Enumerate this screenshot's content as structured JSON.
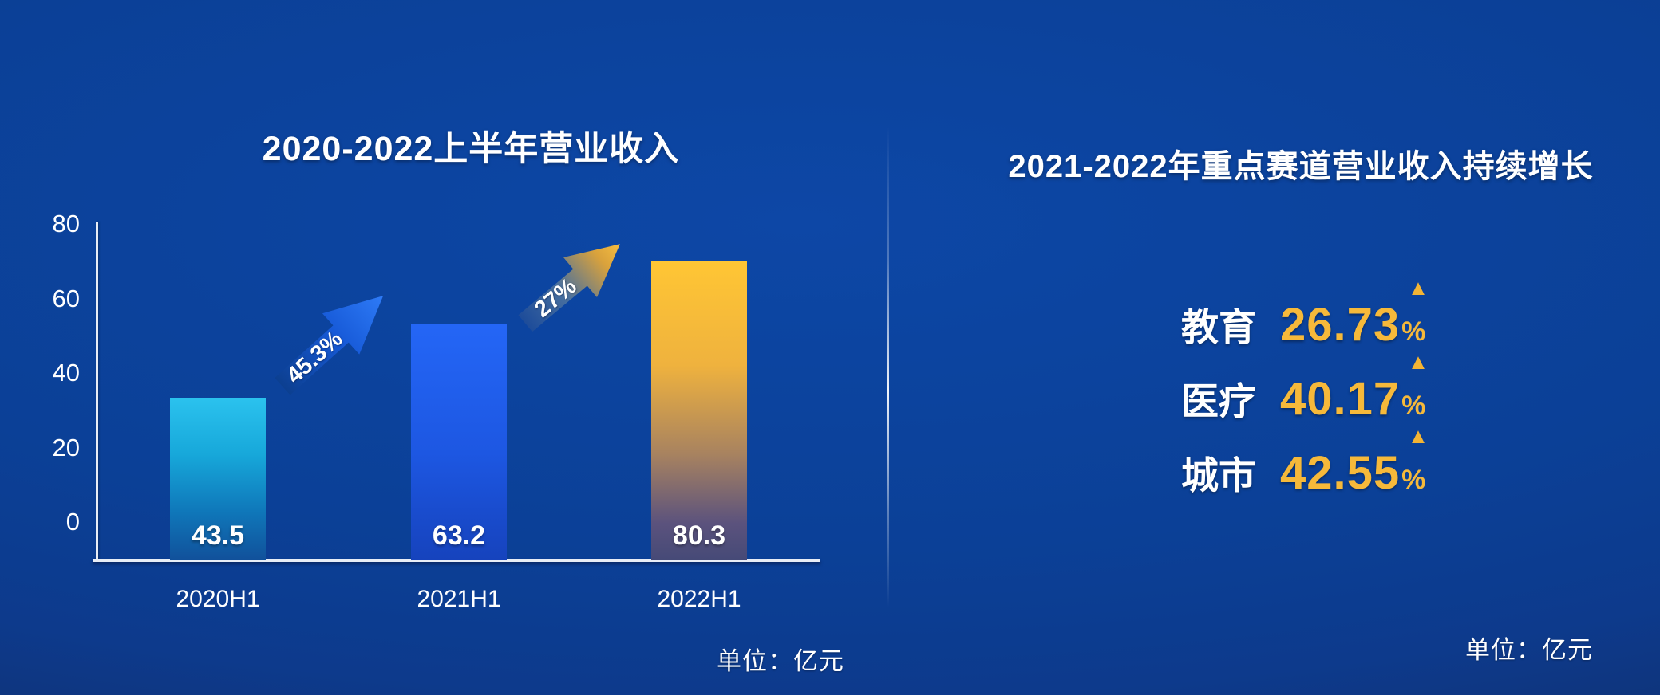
{
  "colors": {
    "background_blue": "#0b4097",
    "accent_gold": "#f6b93a",
    "bar_cyan": "#29c0ec",
    "bar_blue": "#2161f2",
    "bar_gold": "#ffc433",
    "text": "#ffffff"
  },
  "icons": {
    "up_triangle": "▲"
  },
  "chart_data": [
    {
      "type": "bar",
      "title": "2020-2022上半年营业收入",
      "categories": [
        "2020H1",
        "2021H1",
        "2022H1"
      ],
      "values": [
        43.5,
        63.2,
        80.3
      ],
      "yticks": [
        0,
        20,
        40,
        60,
        80
      ],
      "ylim": [
        0,
        90
      ],
      "xlabel": "",
      "ylabel": "",
      "grid": false,
      "legend": "none",
      "unit": "单位：亿元",
      "bar_colors": [
        "#29c0ec",
        "#2161f2",
        "#ffc433"
      ],
      "annotations": [
        {
          "label": "45.3%",
          "between": [
            "2020H1",
            "2021H1"
          ],
          "style": "blue-up-arrow"
        },
        {
          "label": "27%",
          "between": [
            "2021H1",
            "2022H1"
          ],
          "style": "gold-up-arrow"
        }
      ]
    },
    {
      "type": "table",
      "title": "2021-2022年重点赛道营业收入持续增长",
      "unit": "单位：亿元",
      "rows": [
        {
          "label": "教育",
          "value": "26.73",
          "suffix": "%",
          "trend": "up"
        },
        {
          "label": "医疗",
          "value": "40.17",
          "suffix": "%",
          "trend": "up"
        },
        {
          "label": "城市",
          "value": "42.55",
          "suffix": "%",
          "trend": "up"
        }
      ]
    }
  ]
}
